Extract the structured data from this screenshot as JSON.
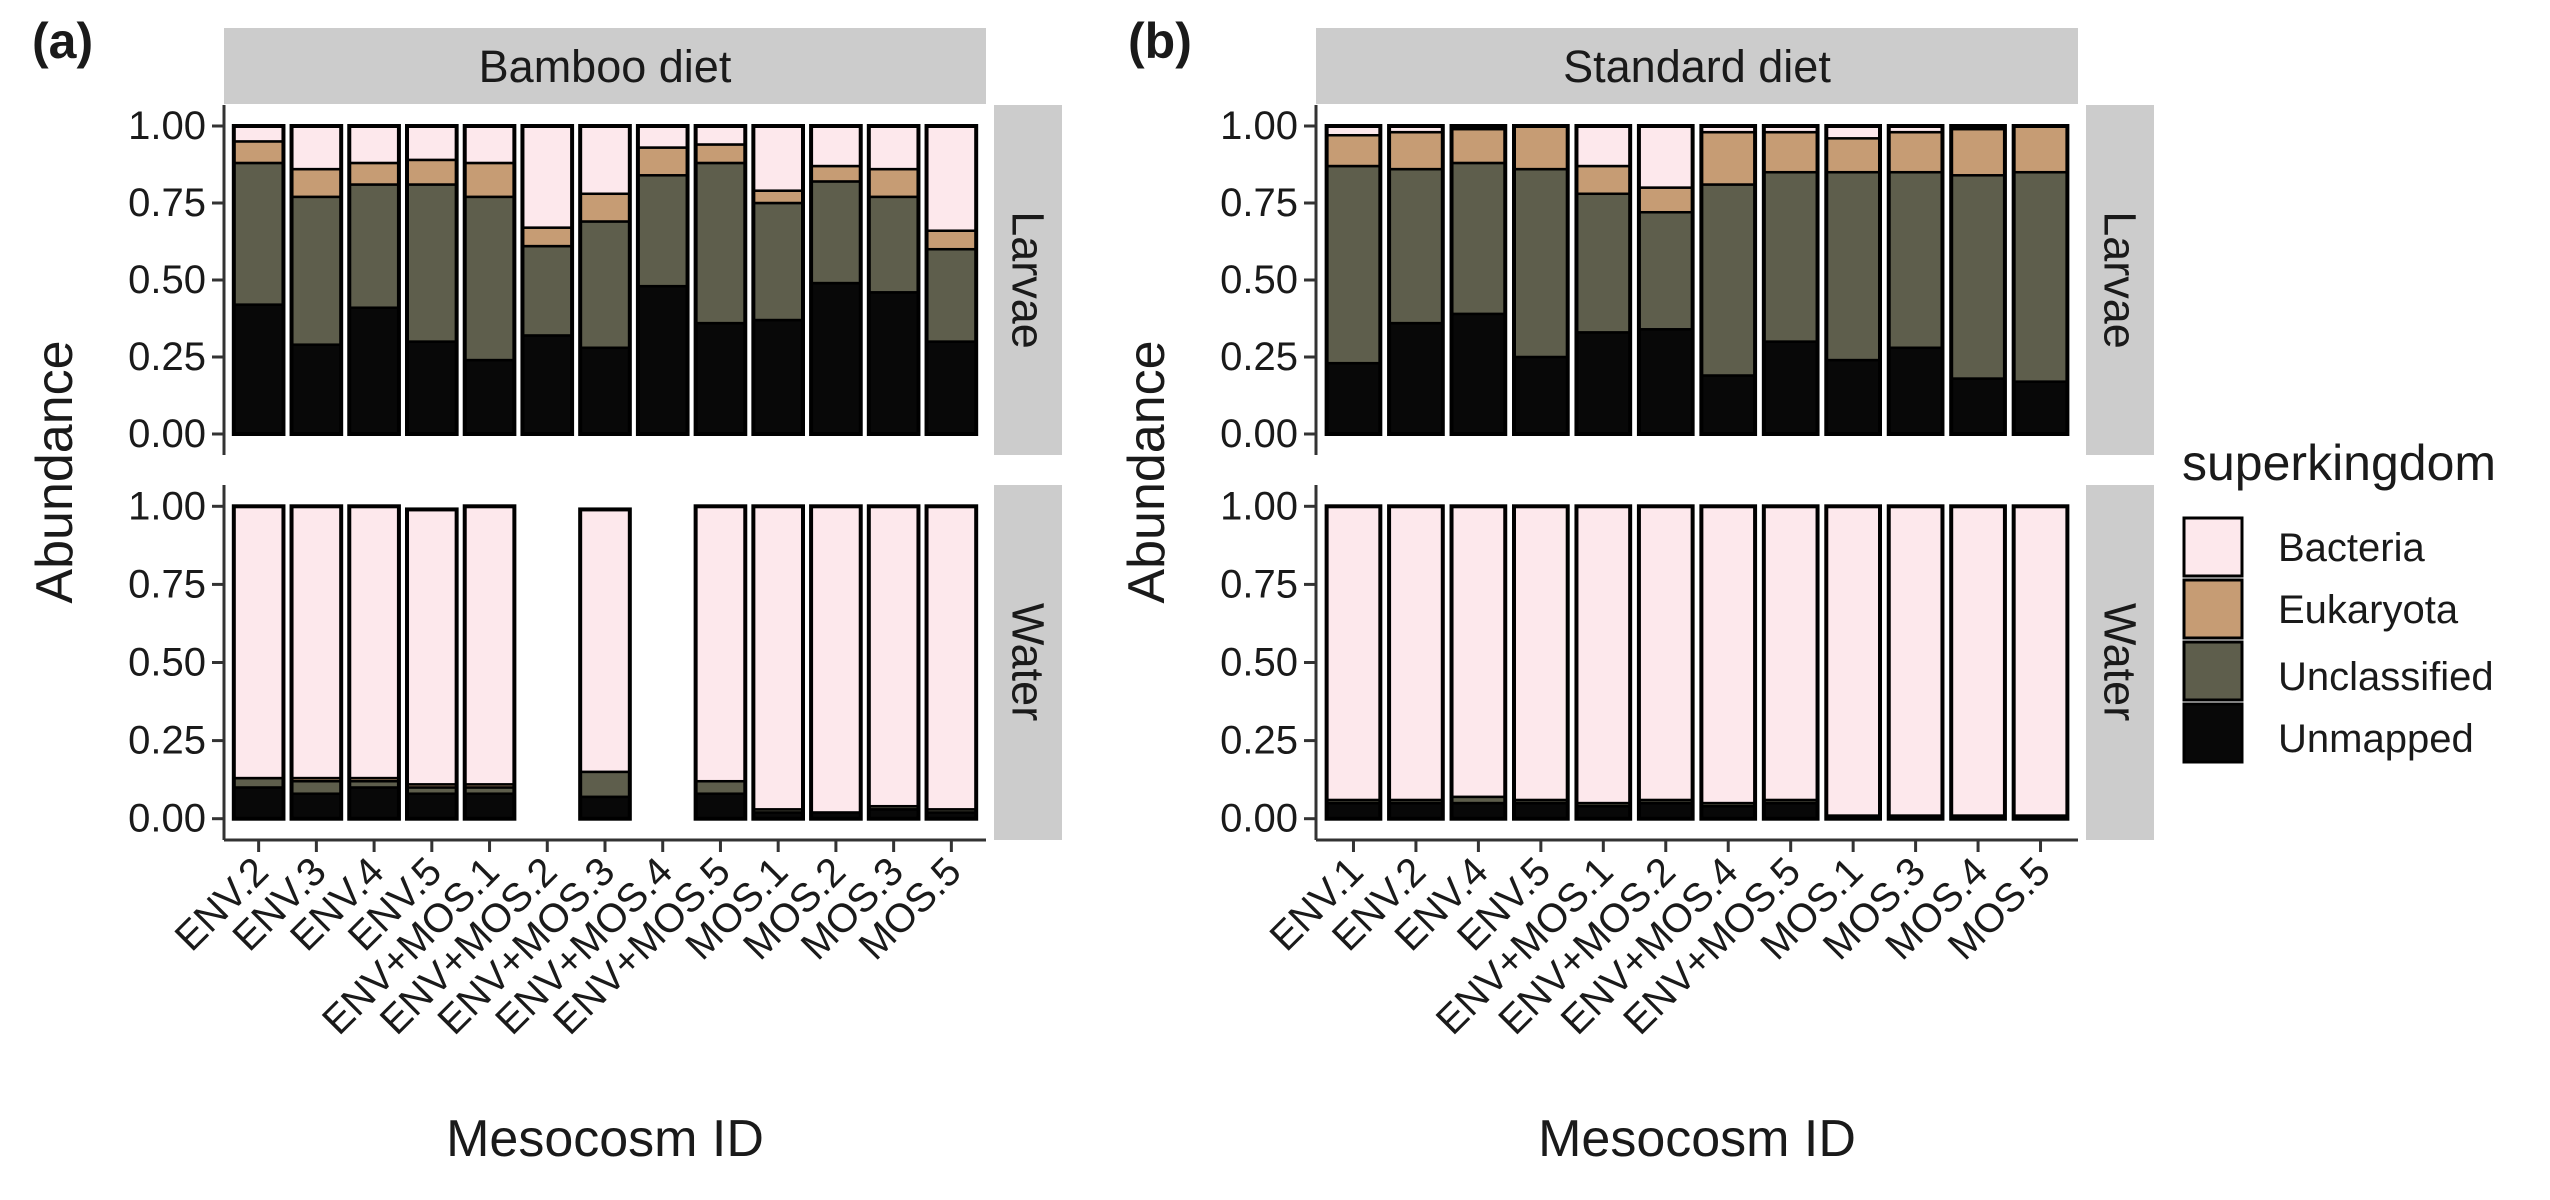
{
  "figure": {
    "stack_order": [
      "Unmapped",
      "Unclassified",
      "Eukaryota",
      "Bacteria"
    ],
    "legend_order": [
      "Bacteria",
      "Eukaryota",
      "Unclassified",
      "Unmapped"
    ],
    "colors": {
      "Bacteria": "#fde8ec",
      "Eukaryota": "#c69c74",
      "Unclassified": "#5e5e4c",
      "Unmapped": "#080808",
      "strip": "#cccccc",
      "outline": "#000000"
    },
    "legend_title": "superkingdom",
    "y_ticks": [
      "0.00",
      "0.25",
      "0.50",
      "0.75",
      "1.00"
    ],
    "row_labels": [
      "Larvae",
      "Water"
    ]
  },
  "chart_data": [
    {
      "type": "bar",
      "stacked": true,
      "panel_tag": "(a)",
      "title": "Bamboo diet",
      "xlabel": "Mesocosm ID",
      "ylabel": "Abundance",
      "ylim": [
        0,
        1
      ],
      "categories": [
        "ENV.2",
        "ENV.3",
        "ENV.4",
        "ENV.5",
        "ENV+MOS.1",
        "ENV+MOS.2",
        "ENV+MOS.3",
        "ENV+MOS.4",
        "ENV+MOS.5",
        "MOS.1",
        "MOS.2",
        "MOS.3",
        "MOS.5"
      ],
      "facets": [
        {
          "row": "Larvae",
          "series": [
            {
              "name": "Unmapped",
              "values": [
                0.42,
                0.29,
                0.41,
                0.3,
                0.24,
                0.32,
                0.28,
                0.48,
                0.36,
                0.37,
                0.49,
                0.46,
                0.3
              ]
            },
            {
              "name": "Unclassified",
              "values": [
                0.46,
                0.48,
                0.4,
                0.51,
                0.53,
                0.29,
                0.41,
                0.36,
                0.52,
                0.38,
                0.33,
                0.31,
                0.3
              ]
            },
            {
              "name": "Eukaryota",
              "values": [
                0.07,
                0.09,
                0.07,
                0.08,
                0.11,
                0.06,
                0.09,
                0.09,
                0.06,
                0.04,
                0.05,
                0.09,
                0.06
              ]
            },
            {
              "name": "Bacteria",
              "values": [
                0.05,
                0.14,
                0.12,
                0.11,
                0.12,
                0.33,
                0.22,
                0.07,
                0.06,
                0.21,
                0.13,
                0.14,
                0.34
              ]
            }
          ]
        },
        {
          "row": "Water",
          "series": [
            {
              "name": "Unmapped",
              "values": [
                0.1,
                0.08,
                0.1,
                0.08,
                0.08,
                null,
                0.07,
                null,
                0.08,
                0.02,
                0.02,
                0.03,
                0.02
              ]
            },
            {
              "name": "Unclassified",
              "values": [
                0.03,
                0.04,
                0.02,
                0.02,
                0.02,
                null,
                0.08,
                null,
                0.04,
                0.01,
                0.0,
                0.01,
                0.01
              ]
            },
            {
              "name": "Eukaryota",
              "values": [
                0.0,
                0.01,
                0.01,
                0.01,
                0.01,
                null,
                0.0,
                null,
                0.0,
                0.0,
                0.0,
                0.0,
                0.0
              ]
            },
            {
              "name": "Bacteria",
              "values": [
                0.87,
                0.87,
                0.87,
                0.88,
                0.89,
                null,
                0.84,
                null,
                0.88,
                0.97,
                0.98,
                0.96,
                0.97
              ]
            }
          ]
        }
      ]
    },
    {
      "type": "bar",
      "stacked": true,
      "panel_tag": "(b)",
      "title": "Standard diet",
      "xlabel": "Mesocosm ID",
      "ylabel": "Abundance",
      "ylim": [
        0,
        1
      ],
      "categories": [
        "ENV.1",
        "ENV.2",
        "ENV.4",
        "ENV.5",
        "ENV+MOS.1",
        "ENV+MOS.2",
        "ENV+MOS.4",
        "ENV+MOS.5",
        "MOS.1",
        "MOS.3",
        "MOS.4",
        "MOS.5"
      ],
      "facets": [
        {
          "row": "Larvae",
          "series": [
            {
              "name": "Unmapped",
              "values": [
                0.23,
                0.36,
                0.39,
                0.25,
                0.33,
                0.34,
                0.19,
                0.3,
                0.24,
                0.28,
                0.18,
                0.17
              ]
            },
            {
              "name": "Unclassified",
              "values": [
                0.64,
                0.5,
                0.49,
                0.61,
                0.45,
                0.38,
                0.62,
                0.55,
                0.61,
                0.57,
                0.66,
                0.68
              ]
            },
            {
              "name": "Eukaryota",
              "values": [
                0.1,
                0.12,
                0.11,
                0.14,
                0.09,
                0.08,
                0.17,
                0.13,
                0.11,
                0.13,
                0.15,
                0.15
              ]
            },
            {
              "name": "Bacteria",
              "values": [
                0.03,
                0.02,
                0.01,
                0.0,
                0.13,
                0.2,
                0.02,
                0.02,
                0.04,
                0.02,
                0.01,
                0.0
              ]
            }
          ]
        },
        {
          "row": "Water",
          "series": [
            {
              "name": "Unmapped",
              "values": [
                0.05,
                0.05,
                0.05,
                0.05,
                0.04,
                0.05,
                0.04,
                0.05,
                0.01,
                0.01,
                0.01,
                0.01
              ]
            },
            {
              "name": "Unclassified",
              "values": [
                0.01,
                0.01,
                0.02,
                0.01,
                0.01,
                0.01,
                0.01,
                0.01,
                0.0,
                0.0,
                0.0,
                0.0
              ]
            },
            {
              "name": "Eukaryota",
              "values": [
                0.0,
                0.0,
                0.0,
                0.0,
                0.0,
                0.0,
                0.0,
                0.0,
                0.0,
                0.0,
                0.0,
                0.0
              ]
            },
            {
              "name": "Bacteria",
              "values": [
                0.94,
                0.94,
                0.93,
                0.94,
                0.95,
                0.94,
                0.95,
                0.94,
                0.99,
                0.99,
                0.99,
                0.99
              ]
            }
          ]
        }
      ]
    }
  ]
}
